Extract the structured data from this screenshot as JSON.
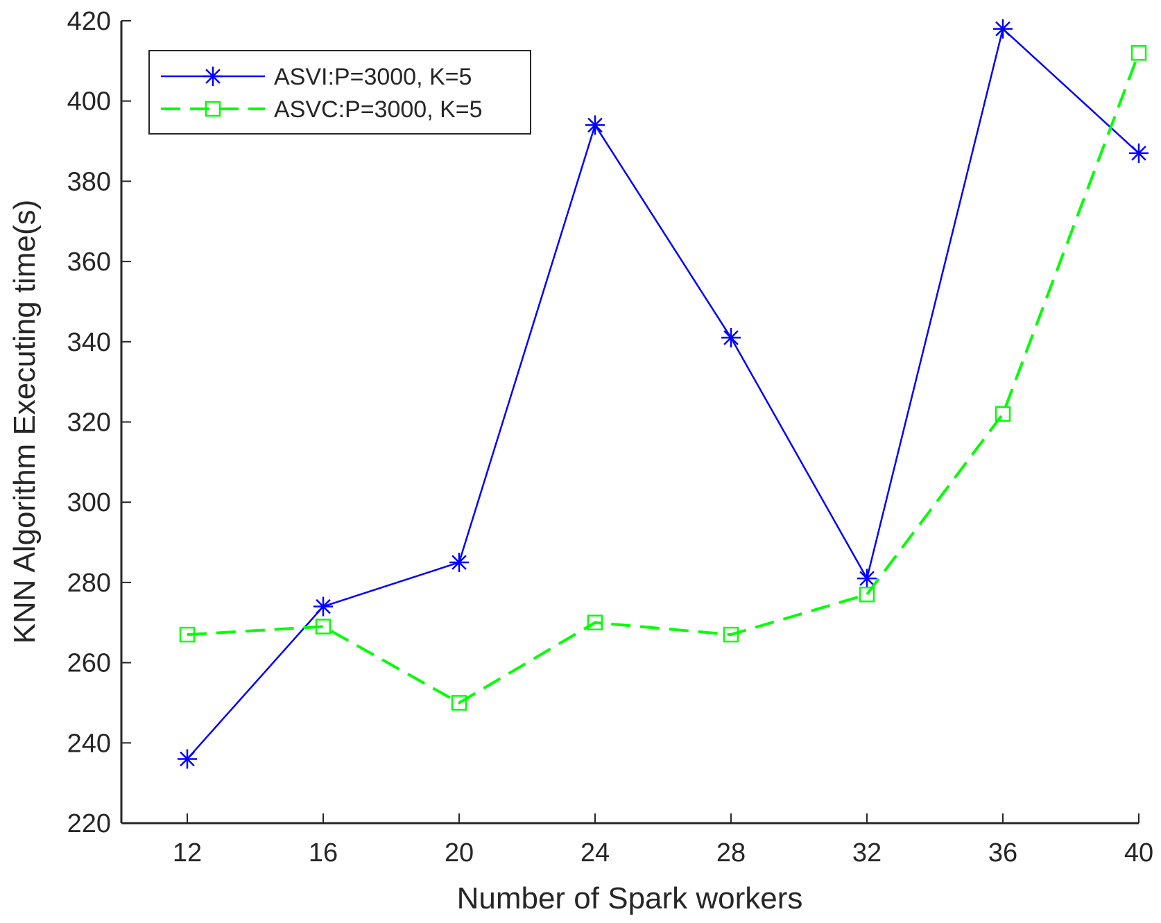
{
  "chart_data": {
    "type": "line",
    "title": "",
    "xlabel": "Number of Spark workers",
    "ylabel": "KNN Algorithm Executing time(s)",
    "xlim": [
      10,
      40
    ],
    "ylim": [
      220,
      420
    ],
    "xticks": [
      12,
      16,
      20,
      24,
      28,
      32,
      36,
      40
    ],
    "yticks": [
      220,
      240,
      260,
      280,
      300,
      320,
      340,
      360,
      380,
      400,
      420
    ],
    "grid": false,
    "legend_position": "top-left",
    "x": [
      12,
      16,
      20,
      24,
      28,
      32,
      36,
      40
    ],
    "series": [
      {
        "name": "ASVI:P=3000, K=5",
        "values": [
          236,
          274,
          285,
          394,
          341,
          281,
          418,
          387
        ],
        "color": "#0000ff",
        "line_style": "solid",
        "marker": "asterisk"
      },
      {
        "name": "ASVC:P=3000, K=5",
        "values": [
          267,
          269,
          250,
          270,
          267,
          277,
          322,
          412
        ],
        "color": "#00ff00",
        "line_style": "dashed",
        "marker": "square"
      }
    ]
  }
}
